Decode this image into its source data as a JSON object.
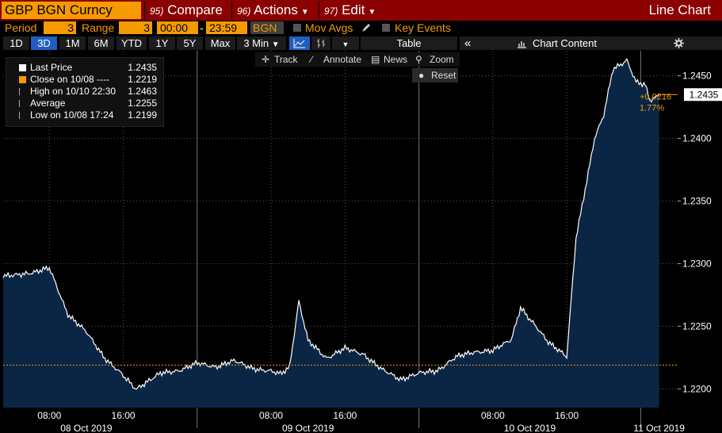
{
  "toolbar": {
    "ticker": "GBP BGN Curncy",
    "compare_num": "95)",
    "compare_label": "Compare",
    "actions_num": "96)",
    "actions_label": "Actions",
    "edit_num": "97)",
    "edit_label": "Edit",
    "view_label": "Line Chart"
  },
  "settings": {
    "period_label": "Period",
    "period_value": "3",
    "range_label": "Range",
    "range_value": "3",
    "time_from": "00:00",
    "time_to": "23:59",
    "source": "BGN",
    "mov_avgs_label": "Mov Avgs",
    "key_events_label": "Key Events"
  },
  "periods": [
    "1D",
    "3D",
    "1M",
    "6M",
    "YTD",
    "1Y",
    "5Y",
    "Max"
  ],
  "selected_period": "3D",
  "interval_label": "3 Min",
  "table_label": "Table",
  "collapse_label": "«",
  "chart_content_label": "Chart Content",
  "tools": {
    "track": "Track",
    "annotate": "Annotate",
    "news": "News",
    "zoom": "Zoom",
    "reset": "Reset"
  },
  "legend": [
    {
      "name": "Last Price",
      "value": "1.2435",
      "color": "#ffffff"
    },
    {
      "name": "Close on 10/08 ----",
      "value": "1.2219",
      "color": "#f59b00"
    },
    {
      "name": "High on 10/10 22:30",
      "value": "1.2463",
      "color": "#aaaaaa"
    },
    {
      "name": "Average",
      "value": "1.2255",
      "color": "#aaaaaa"
    },
    {
      "name": "Low on 10/08 17:24",
      "value": "1.2199",
      "color": "#aaaaaa"
    }
  ],
  "colors": {
    "accent": "#f59b00",
    "header": "#8b0000",
    "area": "#0b2545",
    "line": "#ffffff",
    "selected": "#1f5fbf"
  },
  "chart_data": {
    "type": "area",
    "title": "",
    "xlabel": "",
    "ylabel": "",
    "ylim": [
      1.2185,
      1.247
    ],
    "y_ticks": [
      "1.2200",
      "1.2250",
      "1.2300",
      "1.2350",
      "1.2400",
      "1.2450"
    ],
    "x_tick_labels": [
      "08:00",
      "16:00",
      "08:00",
      "16:00",
      "08:00",
      "16:00"
    ],
    "date_labels": [
      "08 Oct 2019",
      "09 Oct 2019",
      "10 Oct 2019",
      "11 Oct 2019"
    ],
    "reference_line": {
      "label": "Close on 10/08",
      "value": 1.2219
    },
    "last_value_label": "1.2435",
    "change_label": "+0.0216",
    "change_pct_label": "1.77%",
    "series": [
      {
        "name": "Last Price",
        "x": [
          "10/08 03:00",
          "10/08 06:00",
          "10/08 08:00",
          "10/08 10:00",
          "10/08 12:00",
          "10/08 14:00",
          "10/08 16:00",
          "10/08 17:24",
          "10/08 20:00",
          "10/08 22:00",
          "10/09 00:00",
          "10/09 02:00",
          "10/09 04:00",
          "10/09 06:00",
          "10/09 07:00",
          "10/09 09:00",
          "10/09 10:00",
          "10/09 11:00",
          "10/09 12:00",
          "10/09 14:00",
          "10/09 16:00",
          "10/09 18:00",
          "10/09 20:00",
          "10/09 22:00",
          "10/10 00:00",
          "10/10 02:00",
          "10/10 04:00",
          "10/10 06:00",
          "10/10 08:00",
          "10/10 10:00",
          "10/10 11:00",
          "10/10 12:00",
          "10/10 14:00",
          "10/10 15:00",
          "10/10 16:00",
          "10/10 17:00",
          "10/10 18:00",
          "10/10 19:00",
          "10/10 20:00",
          "10/10 21:00",
          "10/10 22:30",
          "10/10 23:30",
          "10/11 00:30",
          "10/11 01:00",
          "10/11 02:00"
        ],
        "y": [
          1.229,
          1.2293,
          1.2296,
          1.226,
          1.2245,
          1.2225,
          1.221,
          1.2199,
          1.2212,
          1.2215,
          1.222,
          1.2218,
          1.2222,
          1.2217,
          1.2215,
          1.2212,
          1.2218,
          1.227,
          1.2238,
          1.2225,
          1.2232,
          1.2228,
          1.2215,
          1.2208,
          1.2212,
          1.2215,
          1.2225,
          1.223,
          1.223,
          1.224,
          1.2265,
          1.2255,
          1.2238,
          1.2232,
          1.2225,
          1.232,
          1.236,
          1.24,
          1.2418,
          1.2455,
          1.2463,
          1.2445,
          1.2442,
          1.243,
          1.2435
        ]
      }
    ]
  }
}
